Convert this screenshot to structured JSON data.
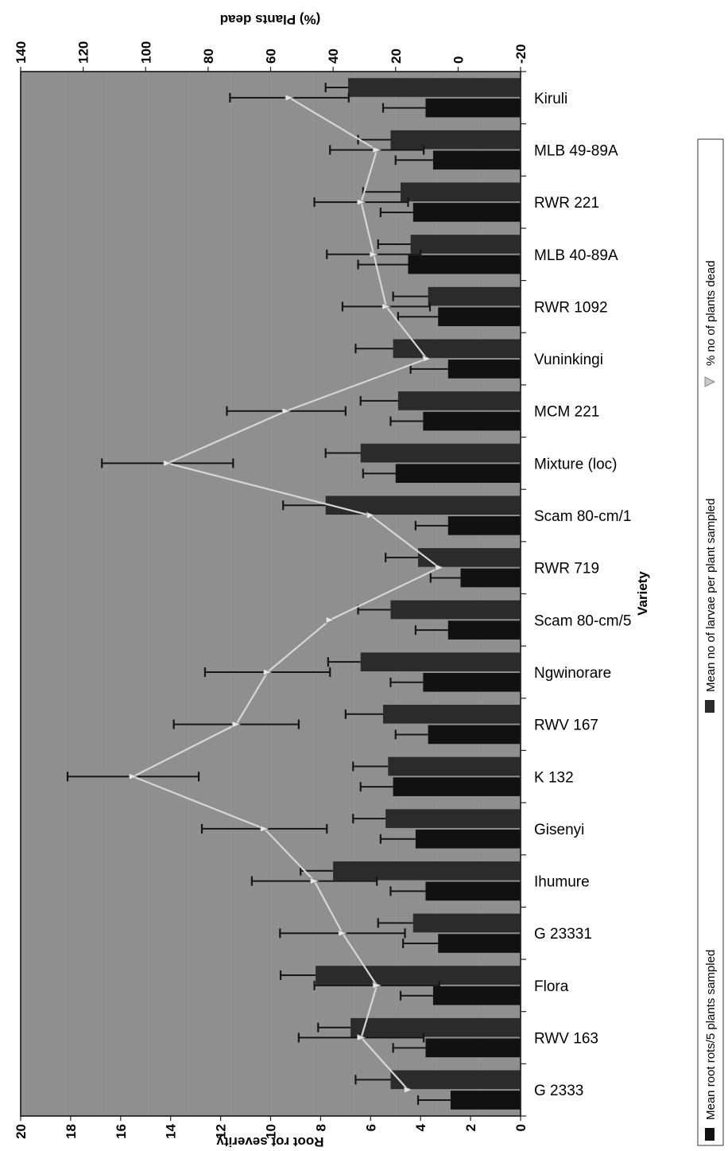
{
  "chart_data": {
    "type": "bar",
    "orientation": "rotated-90-clockwise",
    "categories": [
      "Kiruli",
      "MLB 49-89A",
      "RWR 221",
      "MLB 40-89A",
      "RWR 1092",
      "Vuninkingi",
      "MCM 221",
      "Mixture (loc)",
      "Scam 80-cm/1",
      "RWR 719",
      "Scam 80-cm/5",
      "Ngwinorare",
      "RWV 167",
      "K 132",
      "Gisenyi",
      "Ihumure",
      "G 23331",
      "Flora",
      "RWV 163",
      "G 2333"
    ],
    "xlabel": "Variety",
    "ylabel": "Root rot severity",
    "y2label": "(%) Plants dead",
    "ylim": [
      0,
      20
    ],
    "y2lim": [
      -20,
      140
    ],
    "yticks": [
      "0",
      "2",
      "4",
      "6",
      "8",
      "10",
      "12",
      "14",
      "16",
      "18",
      "20"
    ],
    "y2ticks": [
      "-20",
      "0",
      "20",
      "40",
      "60",
      "80",
      "100",
      "120",
      "140"
    ],
    "series": [
      {
        "name": "Mean root rots/5 plants sampled",
        "kind": "bar",
        "values": [
          3.8,
          3.5,
          4.3,
          4.5,
          3.3,
          2.9,
          3.9,
          5.0,
          2.9,
          2.4,
          2.9,
          3.9,
          3.7,
          5.1,
          4.2,
          3.8,
          3.3,
          3.5,
          3.8,
          2.8
        ],
        "errors": [
          1.7,
          1.5,
          1.3,
          2.0,
          1.6,
          1.5,
          1.3,
          1.3,
          1.3,
          1.2,
          1.3,
          1.3,
          1.3,
          1.3,
          1.4,
          1.4,
          1.4,
          1.3,
          1.3,
          1.3
        ]
      },
      {
        "name": "Mean no of larvae per plant sampled",
        "kind": "bar",
        "values": [
          6.9,
          5.2,
          4.8,
          4.4,
          3.7,
          5.1,
          4.9,
          6.4,
          7.8,
          4.1,
          5.2,
          6.4,
          5.5,
          5.3,
          5.4,
          7.5,
          4.3,
          8.2,
          6.8,
          5.2
        ],
        "errors": [
          0.9,
          1.3,
          1.5,
          1.3,
          1.4,
          1.5,
          1.5,
          1.4,
          1.7,
          1.3,
          1.3,
          1.3,
          1.5,
          1.4,
          1.3,
          1.3,
          1.4,
          1.4,
          1.3,
          1.4
        ]
      },
      {
        "name": "% no of plants dead",
        "kind": "line",
        "values": [
          54,
          26,
          31,
          27,
          23,
          10,
          55,
          93,
          28,
          6,
          41,
          61,
          71,
          104,
          62,
          46,
          37,
          26,
          31,
          16
        ],
        "errors": [
          19,
          15,
          15,
          15,
          14,
          0,
          19,
          21,
          0,
          0,
          0,
          20,
          20,
          21,
          20,
          20,
          20,
          20,
          20,
          0
        ]
      }
    ],
    "legend_position": "right",
    "colors": {
      "root_rots": "#111111",
      "larvae": "#2b2b2b",
      "plants_dead": "#d6d6d6",
      "plot_bg": "#8f8f8f",
      "error": "#161616"
    }
  }
}
